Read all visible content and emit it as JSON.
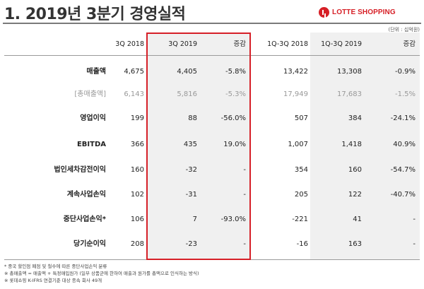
{
  "title": "1. 2019년 3분기 경영실적",
  "logo": {
    "text": "LOTTE SHOPPING",
    "mark": "lotte-logo-mark"
  },
  "unit": "(단위 : 십억원)",
  "columns": [
    "3Q 2018",
    "3Q 2019",
    "증감",
    "1Q-3Q 2018",
    "1Q-3Q 2019",
    "증감"
  ],
  "rows": [
    {
      "label": "매출액",
      "values": [
        "4,675",
        "4,405",
        "-5.8%",
        "13,422",
        "13,308",
        "-0.9%"
      ],
      "muted": false
    },
    {
      "label": "[총매출액]",
      "values": [
        "6,143",
        "5,816",
        "-5.3%",
        "17,949",
        "17,683",
        "-1.5%"
      ],
      "muted": true
    },
    {
      "label": "영업이익",
      "values": [
        "199",
        "88",
        "-56.0%",
        "507",
        "384",
        "-24.1%"
      ],
      "muted": false
    },
    {
      "label": "EBITDA",
      "values": [
        "366",
        "435",
        "19.0%",
        "1,007",
        "1,418",
        "40.9%"
      ],
      "muted": false
    },
    {
      "label": "법인세차감전이익",
      "values": [
        "160",
        "-32",
        "-",
        "354",
        "160",
        "-54.7%"
      ],
      "muted": false
    },
    {
      "label": "계속사업손익",
      "values": [
        "102",
        "-31",
        "-",
        "205",
        "122",
        "-40.7%"
      ],
      "muted": false
    },
    {
      "label": "중단사업손익*",
      "values": [
        "106",
        "7",
        "-93.0%",
        "-221",
        "41",
        "-"
      ],
      "muted": false
    },
    {
      "label": "당기순이익",
      "values": [
        "208",
        "-23",
        "-",
        "-16",
        "163",
        "-"
      ],
      "muted": false
    }
  ],
  "notes": [
    "* 중국 할인점 폐점 및 철수에 따른 중단사업손익 분류",
    "※ 총매출액 = 매출액 + 특정매입원가 (일부 상품군에 한하여 매출과 원가를 총액으로 인식하는 방식)",
    "※ 롯데쇼핑 K-IFRS 연결기준 대상 종속 회사 49개"
  ],
  "colors": {
    "accent": "#d62028",
    "shade": "#f0f0f0"
  }
}
